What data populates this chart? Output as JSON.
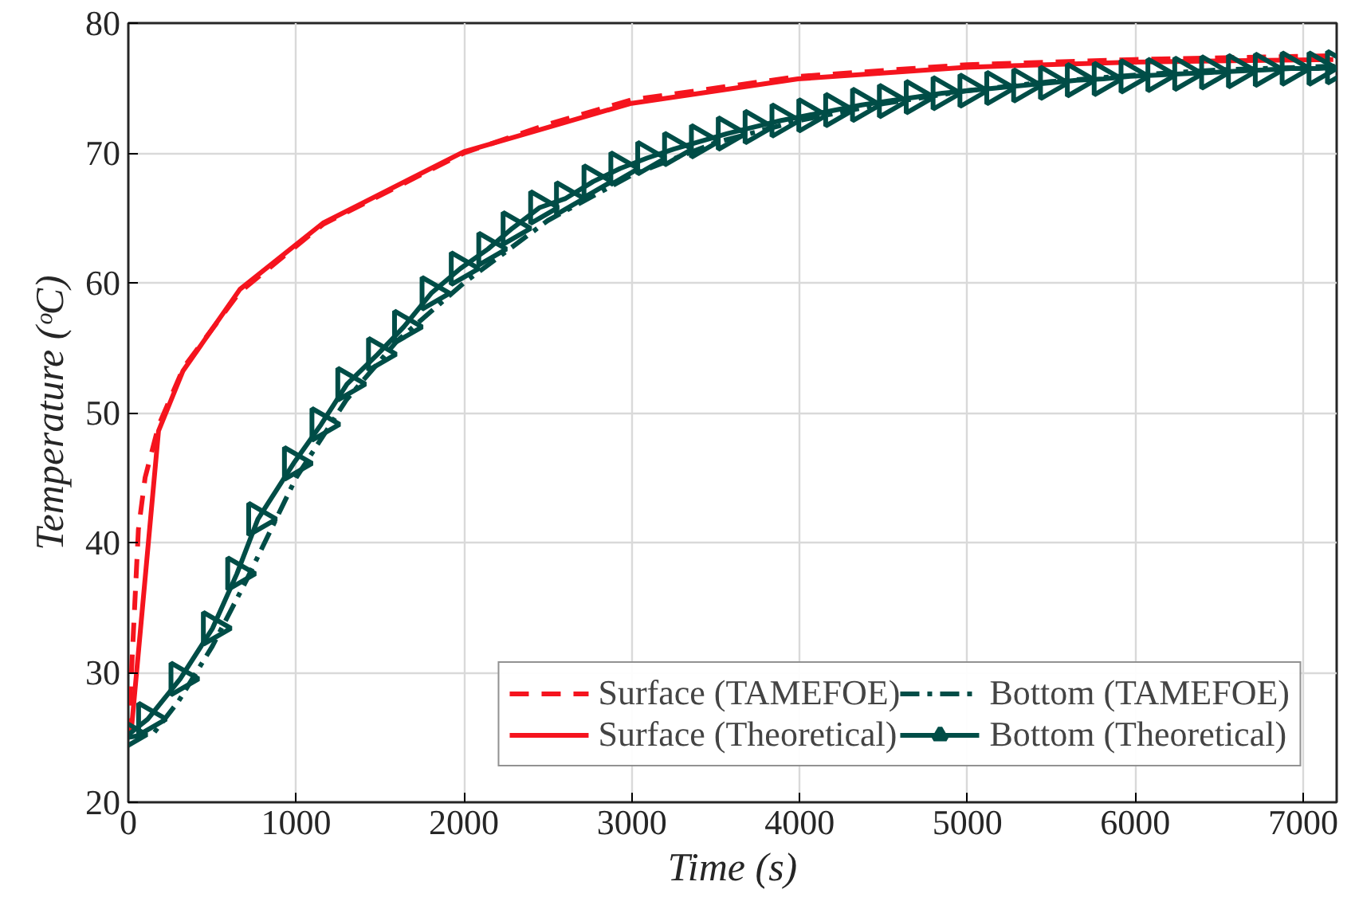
{
  "chart_data": {
    "type": "line",
    "xlabel": "Time (s)",
    "ylabel": "Temperature (ᵒC)",
    "xlim": [
      0,
      7200
    ],
    "ylim": [
      20,
      80
    ],
    "xticks": [
      0,
      1000,
      2000,
      3000,
      4000,
      5000,
      6000,
      7000
    ],
    "yticks": [
      20,
      30,
      40,
      50,
      60,
      70,
      80
    ],
    "grid": true,
    "legend": "bottom right",
    "series": [
      {
        "name": "Surface (TAMEFOE)",
        "color": "#f5141e",
        "line_style": "dashed",
        "marker": "none",
        "x": [
          0,
          30,
          60,
          100,
          180,
          330,
          665,
          1160,
          2000,
          2500,
          3000,
          4000,
          5000,
          6000,
          7200
        ],
        "values": [
          25,
          33,
          41,
          45,
          49,
          53.5,
          59.3,
          64.5,
          70,
          72.2,
          74.1,
          75.9,
          76.8,
          77.2,
          77.5
        ]
      },
      {
        "name": "Surface (Theoretical)",
        "color": "#f5141e",
        "line_style": "solid",
        "marker": "none",
        "x": [
          0,
          19,
          180,
          325,
          665,
          1160,
          2000,
          2480,
          2990,
          3990,
          4990,
          5985,
          7180
        ],
        "values": [
          25,
          25.7,
          48.6,
          53.2,
          59.5,
          64.6,
          70.1,
          71.9,
          73.8,
          75.7,
          76.6,
          77,
          77.2
        ]
      },
      {
        "name": "Bottom (TAMEFOE)",
        "color": "#004d47",
        "line_style": "dashdot",
        "marker": "none",
        "x": [
          0,
          150,
          300,
          500,
          700,
          1000,
          1300,
          1600,
          2000,
          2500,
          3000,
          3500,
          4000,
          4500,
          5000,
          5500,
          6000,
          6500,
          7000,
          7200
        ],
        "values": [
          25,
          25.3,
          27.8,
          32,
          37,
          45,
          51,
          55.5,
          60,
          64.8,
          68.3,
          70.8,
          72.5,
          73.8,
          74.8,
          75.5,
          76,
          76.4,
          76.6,
          76.7
        ]
      },
      {
        "name": "Bottom (Theoretical)",
        "color": "#004d47",
        "line_style": "solid",
        "marker": "triangle",
        "x": [
          0,
          116,
          309,
          502,
          647,
          772,
          985,
          1149,
          1303,
          1486,
          1641,
          1805,
          1979,
          2143,
          2288,
          2452,
          2606,
          2770,
          2930,
          3090,
          3250,
          3410,
          3570,
          3730,
          3890,
          4050,
          4210,
          4370,
          4530,
          4690,
          4850,
          5010,
          5170,
          5330,
          5490,
          5650,
          5810,
          5970,
          6130,
          6290,
          6450,
          6610,
          6770,
          6930,
          7090,
          7200
        ],
        "values": [
          25.2,
          26.4,
          29.5,
          33.4,
          37.6,
          41.8,
          46.1,
          49.1,
          52.2,
          54.5,
          56.6,
          59.2,
          61.1,
          62.6,
          64.2,
          65.8,
          66.5,
          67.8,
          68.8,
          69.6,
          70.3,
          70.9,
          71.5,
          72,
          72.5,
          72.9,
          73.3,
          73.7,
          74,
          74.3,
          74.6,
          74.8,
          75,
          75.2,
          75.4,
          75.6,
          75.7,
          75.9,
          76,
          76.1,
          76.2,
          76.3,
          76.4,
          76.5,
          76.5,
          76.6
        ]
      }
    ]
  }
}
